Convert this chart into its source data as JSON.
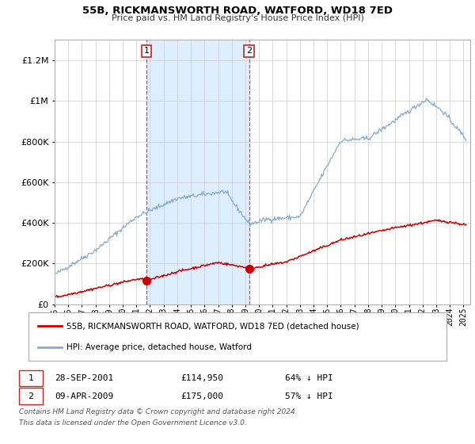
{
  "title": "55B, RICKMANSWORTH ROAD, WATFORD, WD18 7ED",
  "subtitle": "Price paid vs. HM Land Registry's House Price Index (HPI)",
  "legend_entry1": "55B, RICKMANSWORTH ROAD, WATFORD, WD18 7ED (detached house)",
  "legend_entry2": "HPI: Average price, detached house, Watford",
  "transaction1_date": "28-SEP-2001",
  "transaction1_price": "£114,950",
  "transaction1_label": "64% ↓ HPI",
  "transaction2_date": "09-APR-2009",
  "transaction2_price": "£175,000",
  "transaction2_label": "57% ↓ HPI",
  "red_line_color": "#cc0000",
  "blue_line_color": "#88aacc",
  "shaded_color": "#ddeeff",
  "grid_color": "#cccccc",
  "background_color": "#ffffff",
  "ylim_max": 1300000,
  "yticks": [
    0,
    200000,
    400000,
    600000,
    800000,
    1000000,
    1200000
  ],
  "ytick_labels": [
    "£0",
    "£200K",
    "£400K",
    "£600K",
    "£800K",
    "£1M",
    "£1.2M"
  ],
  "transaction1_year": 2001.75,
  "transaction2_year": 2009.27,
  "footnote_line1": "Contains HM Land Registry data © Crown copyright and database right 2024.",
  "footnote_line2": "This data is licensed under the Open Government Licence v3.0."
}
